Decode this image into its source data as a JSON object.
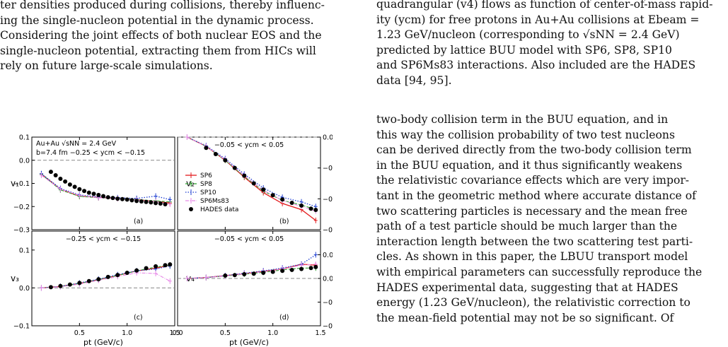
{
  "left_column": {
    "lines": [
      "ter densities produced during collisions, thereby influenc-",
      "ing the single-nucleon potential in the dynamic process.",
      "Considering the joint effects of both nuclear EOS and the",
      "single-nucleon potential, extracting them from HICs will",
      "rely on future large-scale simulations."
    ]
  },
  "caption": {
    "lines": [
      "quadrangular (v4) flows as function of center-of-mass rapid-",
      "ity (ycm) for free protons in Au+Au collisions at Ebeam =",
      "1.23 GeV/nucleon (corresponding to √sNN = 2.4 GeV)",
      "predicted by lattice BUU model with SP6, SP8, SP10",
      "and SP6Ms83 interactions. Also included are the HADES",
      "data [94, 95]."
    ]
  },
  "right_body": {
    "lines": [
      "two-body collision term in the BUU equation, and in",
      "this way the collision probability of two test nucleons",
      "can be derived directly from the two-body collision term",
      "in the BUU equation, and it thus significantly weakens",
      "the relativistic covariance effects which are very impor-",
      "tant in the geometric method where accurate distance of",
      "two scattering particles is necessary and the mean free",
      "path of a test particle should be much larger than the",
      "interaction length between the two scattering test parti-",
      "cles. As shown in this paper, the LBUU transport model",
      "with empirical parameters can successfully reproduce the",
      "HADES experimental data, suggesting that at HADES",
      "energy (1.23 GeV/nucleon), the relativistic correction to",
      "the mean-field potential may not be so significant. Of"
    ]
  },
  "chart_data": {
    "type": "line",
    "xlabel": "pt (GeV/c)",
    "legend": [
      "SP6",
      "SP8",
      "SP10",
      "SP6Ms83",
      "HADES data"
    ],
    "colors": {
      "SP6": "#e31a1c",
      "SP8": "#2ca02c",
      "SP10": "#1f3fd1",
      "SP6Ms83": "#e88ae8",
      "HADES": "#000000"
    },
    "panels": [
      {
        "id": "a",
        "tag": "(a)",
        "ylabel": "v1",
        "xlim": [
          0,
          1.5
        ],
        "ylim": [
          -0.3,
          0.1
        ],
        "yticks": [
          "0.1",
          "0.0",
          "−0.1",
          "−0.2",
          "−0.3"
        ],
        "annotations": [
          "Au+Au √sNN = 2.4 GeV",
          "b=7.4 fm  −0.25 < ycm < −0.15"
        ],
        "series": {
          "SP6": [
            [
              0.1,
              -0.06
            ],
            [
              0.3,
              -0.125
            ],
            [
              0.5,
              -0.155
            ],
            [
              0.7,
              -0.16
            ],
            [
              0.9,
              -0.165
            ],
            [
              1.1,
              -0.17
            ],
            [
              1.3,
              -0.178
            ],
            [
              1.45,
              -0.185
            ]
          ],
          "SP8": [
            [
              0.1,
              -0.06
            ],
            [
              0.3,
              -0.128
            ],
            [
              0.5,
              -0.156
            ],
            [
              0.7,
              -0.162
            ],
            [
              0.9,
              -0.166
            ],
            [
              1.1,
              -0.17
            ],
            [
              1.3,
              -0.175
            ],
            [
              1.45,
              -0.18
            ]
          ],
          "SP10": [
            [
              0.1,
              -0.058
            ],
            [
              0.3,
              -0.122
            ],
            [
              0.5,
              -0.15
            ],
            [
              0.7,
              -0.158
            ],
            [
              0.9,
              -0.162
            ],
            [
              1.1,
              -0.165
            ],
            [
              1.3,
              -0.155
            ],
            [
              1.45,
              -0.17
            ]
          ],
          "SP6Ms83": [
            [
              0.1,
              -0.065
            ],
            [
              0.3,
              -0.125
            ],
            [
              0.5,
              -0.152
            ],
            [
              0.7,
              -0.162
            ],
            [
              0.9,
              -0.166
            ],
            [
              1.1,
              -0.172
            ],
            [
              1.3,
              -0.178
            ],
            [
              1.45,
              -0.19
            ]
          ],
          "HADES": [
            [
              0.2,
              -0.05
            ],
            [
              0.25,
              -0.065
            ],
            [
              0.3,
              -0.08
            ],
            [
              0.35,
              -0.092
            ],
            [
              0.4,
              -0.105
            ],
            [
              0.45,
              -0.115
            ],
            [
              0.5,
              -0.125
            ],
            [
              0.55,
              -0.133
            ],
            [
              0.6,
              -0.14
            ],
            [
              0.65,
              -0.145
            ],
            [
              0.7,
              -0.15
            ],
            [
              0.75,
              -0.155
            ],
            [
              0.8,
              -0.16
            ],
            [
              0.85,
              -0.163
            ],
            [
              0.9,
              -0.166
            ],
            [
              0.95,
              -0.168
            ],
            [
              1.0,
              -0.17
            ],
            [
              1.05,
              -0.173
            ],
            [
              1.1,
              -0.176
            ],
            [
              1.15,
              -0.178
            ],
            [
              1.2,
              -0.18
            ],
            [
              1.25,
              -0.182
            ],
            [
              1.3,
              -0.185
            ],
            [
              1.35,
              -0.187
            ],
            [
              1.4,
              -0.19
            ]
          ]
        }
      },
      {
        "id": "b",
        "tag": "(b)",
        "ylabel": "v2",
        "xlim": [
          0,
          1.5
        ],
        "ylim": [
          -0.3,
          0.0
        ],
        "yticks": [
          "0.0",
          "−0.1",
          "−0.2",
          "−0.3"
        ],
        "annotations": [
          "−0.05 < ycm < 0.05"
        ],
        "series": {
          "SP6": [
            [
              0.1,
              0.0
            ],
            [
              0.3,
              -0.03
            ],
            [
              0.5,
              -0.075
            ],
            [
              0.7,
              -0.13
            ],
            [
              0.9,
              -0.18
            ],
            [
              1.1,
              -0.215
            ],
            [
              1.3,
              -0.235
            ],
            [
              1.45,
              -0.27
            ]
          ],
          "SP8": [
            [
              0.1,
              0.0
            ],
            [
              0.3,
              -0.03
            ],
            [
              0.5,
              -0.075
            ],
            [
              0.7,
              -0.128
            ],
            [
              0.9,
              -0.175
            ],
            [
              1.1,
              -0.205
            ],
            [
              1.3,
              -0.22
            ],
            [
              1.45,
              -0.235
            ]
          ],
          "SP10": [
            [
              0.1,
              0.0
            ],
            [
              0.3,
              -0.028
            ],
            [
              0.5,
              -0.07
            ],
            [
              0.7,
              -0.12
            ],
            [
              0.9,
              -0.165
            ],
            [
              1.1,
              -0.195
            ],
            [
              1.3,
              -0.21
            ],
            [
              1.45,
              -0.225
            ]
          ],
          "SP6Ms83": [
            [
              0.1,
              0.0
            ],
            [
              0.3,
              -0.03
            ],
            [
              0.5,
              -0.073
            ],
            [
              0.7,
              -0.125
            ],
            [
              0.9,
              -0.172
            ],
            [
              1.1,
              -0.205
            ],
            [
              1.3,
              -0.225
            ],
            [
              1.45,
              -0.24
            ]
          ],
          "HADES": [
            [
              0.3,
              -0.035
            ],
            [
              0.4,
              -0.055
            ],
            [
              0.5,
              -0.075
            ],
            [
              0.6,
              -0.1
            ],
            [
              0.7,
              -0.125
            ],
            [
              0.8,
              -0.15
            ],
            [
              0.9,
              -0.17
            ],
            [
              1.0,
              -0.188
            ],
            [
              1.1,
              -0.202
            ],
            [
              1.2,
              -0.213
            ],
            [
              1.3,
              -0.222
            ],
            [
              1.4,
              -0.232
            ],
            [
              1.45,
              -0.236
            ]
          ]
        }
      },
      {
        "id": "c",
        "tag": "(c)",
        "ylabel": "v3",
        "xlim": [
          0,
          1.5
        ],
        "ylim": [
          -0.1,
          0.15
        ],
        "yticks": [
          "0.1",
          "0.0",
          "−0.1"
        ],
        "annotations": [
          "−0.25 < ycm < −0.15"
        ],
        "series": {
          "SP6": [
            [
              0.1,
              0.0
            ],
            [
              0.3,
              0.004
            ],
            [
              0.5,
              0.012
            ],
            [
              0.7,
              0.022
            ],
            [
              0.9,
              0.033
            ],
            [
              1.1,
              0.045
            ],
            [
              1.3,
              0.052
            ],
            [
              1.45,
              0.06
            ]
          ],
          "SP8": [
            [
              0.1,
              0.0
            ],
            [
              0.3,
              0.004
            ],
            [
              0.5,
              0.012
            ],
            [
              0.7,
              0.022
            ],
            [
              0.9,
              0.033
            ],
            [
              1.1,
              0.045
            ],
            [
              1.3,
              0.055
            ],
            [
              1.45,
              0.06
            ]
          ],
          "SP10": [
            [
              0.1,
              0.0
            ],
            [
              0.3,
              0.004
            ],
            [
              0.5,
              0.013
            ],
            [
              0.7,
              0.023
            ],
            [
              0.9,
              0.035
            ],
            [
              1.1,
              0.045
            ],
            [
              1.3,
              0.05
            ],
            [
              1.45,
              0.058
            ]
          ],
          "SP6Ms83": [
            [
              0.1,
              0.0
            ],
            [
              0.3,
              0.003
            ],
            [
              0.5,
              0.01
            ],
            [
              0.7,
              0.02
            ],
            [
              0.9,
              0.03
            ],
            [
              1.1,
              0.04
            ],
            [
              1.3,
              0.038
            ],
            [
              1.45,
              0.018
            ]
          ],
          "HADES": [
            [
              0.2,
              0.002
            ],
            [
              0.3,
              0.005
            ],
            [
              0.4,
              0.009
            ],
            [
              0.5,
              0.013
            ],
            [
              0.6,
              0.018
            ],
            [
              0.7,
              0.023
            ],
            [
              0.8,
              0.029
            ],
            [
              0.9,
              0.034
            ],
            [
              1.0,
              0.04
            ],
            [
              1.1,
              0.046
            ],
            [
              1.2,
              0.052
            ],
            [
              1.3,
              0.057
            ],
            [
              1.4,
              0.06
            ],
            [
              1.45,
              0.062
            ]
          ]
        }
      },
      {
        "id": "d",
        "tag": "(d)",
        "ylabel": "v4",
        "xlim": [
          0,
          1.5
        ],
        "ylim": [
          -0.1,
          0.1
        ],
        "yticks": [
          "0.05",
          "0.00",
          "−0.05",
          "−0.10"
        ],
        "annotations": [
          "−0.05 < ycm < 0.05"
        ],
        "series": {
          "SP6": [
            [
              0.1,
              0.0
            ],
            [
              0.3,
              0.002
            ],
            [
              0.5,
              0.006
            ],
            [
              0.7,
              0.01
            ],
            [
              0.9,
              0.015
            ],
            [
              1.1,
              0.02
            ],
            [
              1.3,
              0.03
            ],
            [
              1.45,
              0.028
            ]
          ],
          "SP8": [
            [
              0.1,
              0.0
            ],
            [
              0.3,
              0.002
            ],
            [
              0.5,
              0.005
            ],
            [
              0.7,
              0.009
            ],
            [
              0.9,
              0.013
            ],
            [
              1.1,
              0.018
            ],
            [
              1.3,
              0.022
            ],
            [
              1.45,
              0.022
            ]
          ],
          "SP10": [
            [
              0.1,
              0.0
            ],
            [
              0.3,
              0.002
            ],
            [
              0.5,
              0.006
            ],
            [
              0.7,
              0.011
            ],
            [
              0.9,
              0.016
            ],
            [
              1.1,
              0.022
            ],
            [
              1.3,
              0.03
            ],
            [
              1.45,
              0.05
            ]
          ],
          "SP6Ms83": [
            [
              0.1,
              0.0
            ],
            [
              0.3,
              0.002
            ],
            [
              0.5,
              0.005
            ],
            [
              0.7,
              0.01
            ],
            [
              0.9,
              0.014
            ],
            [
              1.1,
              0.02
            ],
            [
              1.3,
              0.028
            ],
            [
              1.45,
              0.03
            ]
          ],
          "HADES": [
            [
              0.5,
              0.006
            ],
            [
              0.6,
              0.007
            ],
            [
              0.7,
              0.009
            ],
            [
              0.8,
              0.01
            ],
            [
              0.9,
              0.012
            ],
            [
              1.0,
              0.014
            ],
            [
              1.1,
              0.016
            ],
            [
              1.2,
              0.018
            ],
            [
              1.3,
              0.02
            ],
            [
              1.4,
              0.022
            ],
            [
              1.45,
              0.024
            ]
          ]
        }
      }
    ]
  }
}
